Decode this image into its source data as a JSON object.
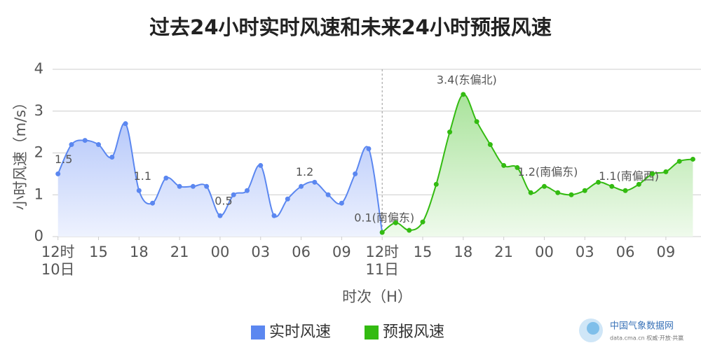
{
  "chart_data": {
    "type": "line",
    "title": "过去24小时实时风速和未来24小时预报风速",
    "y_label": "小时风速（m/s）",
    "x_label": "时次（H）",
    "xlim": [
      -0.4,
      47.6
    ],
    "xticks": [
      {
        "value": 0,
        "label": "12时"
      },
      {
        "value": 3,
        "label": "15"
      },
      {
        "value": 6,
        "label": "18"
      },
      {
        "value": 9,
        "label": "21"
      },
      {
        "value": 12,
        "label": "00"
      },
      {
        "value": 15,
        "label": "03"
      },
      {
        "value": 18,
        "label": "06"
      },
      {
        "value": 21,
        "label": "09"
      },
      {
        "value": 24,
        "label": "12时"
      },
      {
        "value": 27,
        "label": "15"
      },
      {
        "value": 30,
        "label": "18"
      },
      {
        "value": 33,
        "label": "21"
      },
      {
        "value": 36,
        "label": "00"
      },
      {
        "value": 39,
        "label": "03"
      },
      {
        "value": 42,
        "label": "06"
      },
      {
        "value": 45,
        "label": "09"
      }
    ],
    "x_sublabels": [
      {
        "value": 0,
        "label": "10日"
      },
      {
        "value": 24,
        "label": "11日"
      }
    ],
    "divider_x": 24,
    "ylim": [
      0,
      4
    ],
    "yticks": [
      0,
      1,
      2,
      3,
      4
    ],
    "grid": true,
    "legend": "bottom",
    "series": [
      {
        "name": "实时风速",
        "color": "#5b87f0",
        "fill": "#c9d6fb",
        "x": [
          0,
          1,
          2,
          3,
          4,
          5,
          6,
          7,
          8,
          9,
          10,
          11,
          12,
          13,
          14,
          15,
          16,
          17,
          18,
          19,
          20,
          21,
          22,
          23,
          24
        ],
        "values": [
          1.5,
          2.2,
          2.3,
          2.2,
          1.9,
          2.7,
          1.1,
          0.8,
          1.4,
          1.2,
          1.2,
          1.2,
          0.5,
          1.0,
          1.1,
          1.7,
          0.5,
          0.9,
          1.2,
          1.3,
          1.0,
          0.8,
          1.5,
          2.1,
          0.1
        ],
        "value_labels": [
          "1.5",
          null,
          null,
          null,
          null,
          null,
          "1.1",
          null,
          null,
          null,
          null,
          null,
          "0.5",
          null,
          null,
          null,
          null,
          null,
          "1.2",
          null,
          null,
          null,
          null,
          null,
          null
        ]
      },
      {
        "name": "预报风速",
        "color": "#33bb11",
        "fill": "#c6ecbc",
        "x": [
          24,
          25,
          26,
          27,
          28,
          29,
          30,
          31,
          32,
          33,
          34,
          35,
          36,
          37,
          38,
          39,
          40,
          41,
          42,
          43,
          44,
          45,
          46,
          47
        ],
        "values": [
          0.1,
          0.33,
          0.15,
          0.35,
          1.25,
          2.5,
          3.4,
          2.75,
          2.2,
          1.7,
          1.65,
          1.05,
          1.2,
          1.05,
          1.0,
          1.1,
          1.3,
          1.2,
          1.1,
          1.25,
          1.5,
          1.55,
          1.8,
          1.85
        ],
        "value_labels": [
          "0.1(南偏东)",
          null,
          null,
          null,
          null,
          null,
          "3.4(东偏北)",
          null,
          null,
          null,
          null,
          null,
          "1.2(南偏东)",
          null,
          null,
          null,
          null,
          null,
          "1.1(南偏西)",
          null,
          null,
          null,
          null,
          null
        ]
      }
    ],
    "logo": {
      "name": "中国气象数据网",
      "tagline": "data.cma.cn 权威·开放·共赢"
    }
  }
}
